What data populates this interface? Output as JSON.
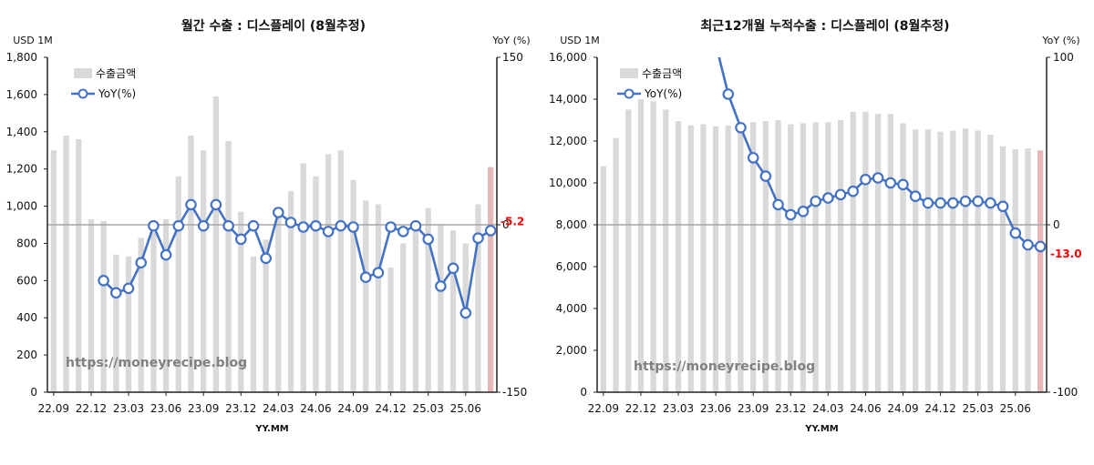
{
  "watermark": "https://moneyrecipe.blog",
  "chart_data": [
    {
      "type": "bar+line",
      "title": "월간 수출 : 디스플레이 (8월추정)",
      "y_unit_left": "USD 1M",
      "y_unit_right": "YoY (%)",
      "xlabel": "YY.MM",
      "ylim_left": [
        0,
        1800
      ],
      "ylim_right": [
        -150,
        150
      ],
      "left_ticks": [
        "0",
        "200",
        "400",
        "600",
        "800",
        "1,000",
        "1,200",
        "1,400",
        "1,600",
        "1,800"
      ],
      "right_ticks": [
        "-150",
        "0",
        "150"
      ],
      "x_tick_labels": [
        "22.09",
        "22.12",
        "23.03",
        "23.06",
        "23.09",
        "23.12",
        "24.03",
        "24.06",
        "24.09",
        "24.12",
        "25.03",
        "25.06"
      ],
      "legend": [
        "수출금액",
        "YoY(%)"
      ],
      "legend_position": "top-left",
      "reference_line_right": 0,
      "last_label": "-5.2",
      "colors": {
        "bar": "#d9d9d9",
        "bar_last": "#e6b8b7",
        "line": "#4472c4",
        "ref": "#a6a6a6",
        "last_label": "#ff0000"
      },
      "categories": [
        "22.09",
        "22.10",
        "22.11",
        "22.12",
        "23.01",
        "23.02",
        "23.03",
        "23.04",
        "23.05",
        "23.06",
        "23.07",
        "23.08",
        "23.09",
        "23.10",
        "23.11",
        "23.12",
        "24.01",
        "24.02",
        "24.03",
        "24.04",
        "24.05",
        "24.06",
        "24.07",
        "24.08",
        "24.09",
        "24.10",
        "24.11",
        "24.12",
        "25.01",
        "25.02",
        "25.03",
        "25.04",
        "25.05",
        "25.06",
        "25.07",
        "25.08"
      ],
      "series": [
        {
          "name": "수출금액",
          "values": [
            1300,
            1380,
            1360,
            930,
            920,
            740,
            730,
            830,
            860,
            930,
            1160,
            1380,
            1300,
            1590,
            1350,
            970,
            730,
            820,
            940,
            1080,
            1230,
            1160,
            1280,
            1300,
            1140,
            1030,
            1010,
            670,
            800,
            920,
            990,
            900,
            870,
            800,
            1010,
            1210
          ]
        },
        {
          "name": "YoY(%)",
          "values": [
            null,
            null,
            null,
            null,
            -50,
            -61,
            -57,
            -34,
            -1,
            -27,
            -1,
            18,
            -1,
            18,
            -1,
            -13,
            -1,
            -30,
            11,
            2,
            -2,
            -1,
            -6,
            -1,
            -2,
            -47,
            -43,
            -2,
            -6,
            -1,
            -13,
            -55,
            -39,
            -79,
            -12,
            -5.2
          ]
        }
      ]
    },
    {
      "type": "bar+line",
      "title": "최근12개월 누적수출 : 디스플레이 (8월추정)",
      "y_unit_left": "USD 1M",
      "y_unit_right": "YoY (%)",
      "xlabel": "YY.MM",
      "ylim_left": [
        0,
        16000
      ],
      "ylim_right": [
        -100,
        100
      ],
      "left_ticks": [
        "0",
        "2,000",
        "4,000",
        "6,000",
        "8,000",
        "10,000",
        "12,000",
        "14,000",
        "16,000"
      ],
      "right_ticks": [
        "-100",
        "0",
        "100"
      ],
      "x_tick_labels": [
        "22.09",
        "22.12",
        "23.03",
        "23.06",
        "23.09",
        "23.12",
        "24.03",
        "24.06",
        "24.09",
        "24.12",
        "25.03",
        "25.06"
      ],
      "legend": [
        "수출금액",
        "YoY(%)"
      ],
      "legend_position": "top-left",
      "reference_line_right": 0,
      "last_label": "-13.0",
      "colors": {
        "bar": "#d9d9d9",
        "bar_last": "#e6b8b7",
        "line": "#4472c4",
        "ref": "#a6a6a6",
        "last_label": "#ff0000"
      },
      "categories": [
        "22.09",
        "22.10",
        "22.11",
        "22.12",
        "23.01",
        "23.02",
        "23.03",
        "23.04",
        "23.05",
        "23.06",
        "23.07",
        "23.08",
        "23.09",
        "23.10",
        "23.11",
        "23.12",
        "24.01",
        "24.02",
        "24.03",
        "24.04",
        "24.05",
        "24.06",
        "24.07",
        "24.08",
        "24.09",
        "24.10",
        "24.11",
        "24.12",
        "25.01",
        "25.02",
        "25.03",
        "25.04",
        "25.05",
        "25.06",
        "25.07",
        "25.08"
      ],
      "series": [
        {
          "name": "수출금액",
          "values": [
            10800,
            12150,
            13500,
            14000,
            13900,
            13500,
            12950,
            12750,
            12800,
            12700,
            12750,
            12750,
            12900,
            12950,
            13000,
            12800,
            12850,
            12900,
            12900,
            13000,
            13400,
            13400,
            13300,
            13300,
            12850,
            12550,
            12550,
            12450,
            12500,
            12600,
            12500,
            12300,
            11750,
            11600,
            11650,
            11550
          ]
        },
        {
          "name": "YoY(%)",
          "values": [
            null,
            null,
            null,
            null,
            null,
            null,
            null,
            null,
            null,
            108,
            78,
            58,
            40,
            29,
            12,
            6,
            8,
            14,
            16,
            18,
            20,
            27,
            28,
            25,
            24,
            17,
            13,
            13,
            13,
            14,
            14,
            13,
            11,
            -5,
            -12,
            -13
          ]
        }
      ]
    }
  ]
}
